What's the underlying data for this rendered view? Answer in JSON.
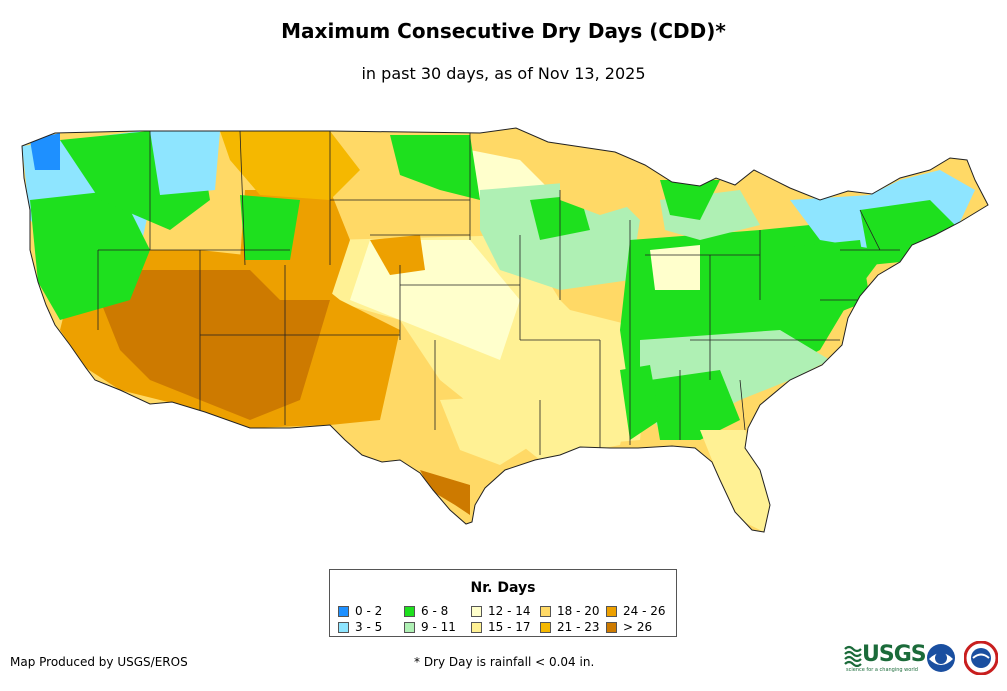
{
  "title": "Maximum Consecutive Dry Days (CDD)*",
  "subtitle": "in past 30 days, as of Nov 13, 2025",
  "legend": {
    "title": "Nr. Days",
    "items": [
      {
        "label": "0 - 2",
        "color": "#1e90ff"
      },
      {
        "label": "3 - 5",
        "color": "#8ee5ff"
      },
      {
        "label": "6 - 8",
        "color": "#1ee01e"
      },
      {
        "label": "9 - 11",
        "color": "#aff0b4"
      },
      {
        "label": "12 - 14",
        "color": "#ffffcc"
      },
      {
        "label": "15 - 17",
        "color": "#fff194"
      },
      {
        "label": "18 - 20",
        "color": "#ffd966"
      },
      {
        "label": "21 - 23",
        "color": "#f5b800"
      },
      {
        "label": "24 - 26",
        "color": "#eda000"
      },
      {
        "label": "> 26",
        "color": "#cd7a00"
      }
    ]
  },
  "credit": "Map Produced by USGS/EROS",
  "footnote": "* Dry Day is rainfall < 0.04 in.",
  "logos": {
    "usgs_text": "USGS",
    "usgs_tagline": "science for a changing world"
  }
}
